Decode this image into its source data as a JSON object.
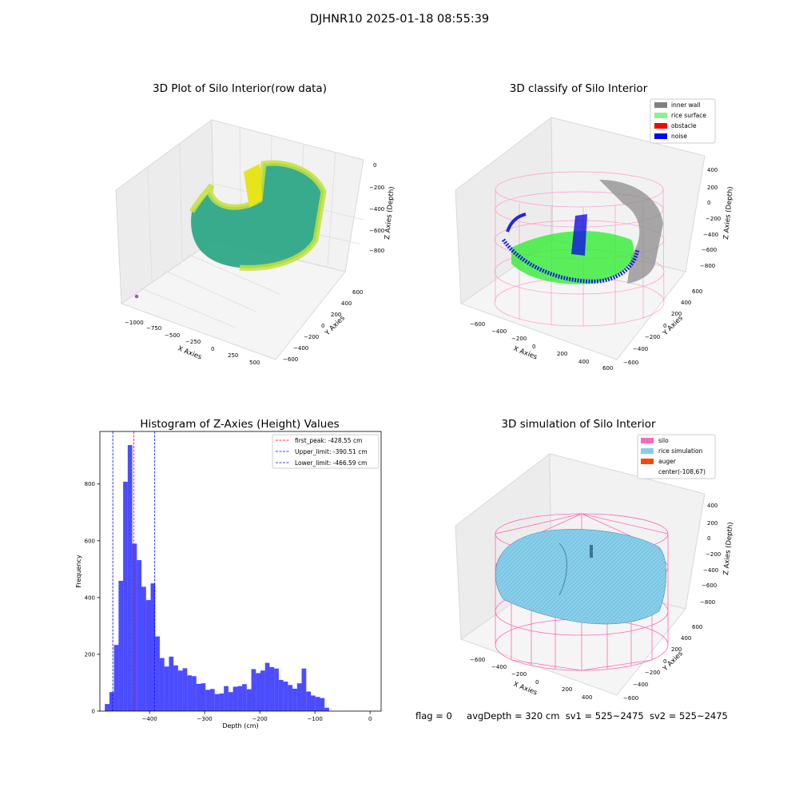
{
  "suptitle": "DJHNR10 2025-01-18 08:55:39",
  "panels": {
    "raw": {
      "title": "3D Plot of Silo Interior(row data)",
      "xlabel": "X Axies",
      "ylabel": "Y Axies",
      "zlabel": "Z Axies (Depth)",
      "xticks": [
        "−1000",
        "−750",
        "−500",
        "−250",
        "0",
        "250",
        "500"
      ],
      "yticks": [
        "600",
        "400",
        "200",
        "0",
        "−200",
        "−400",
        "−600"
      ],
      "zticks": [
        "0",
        "−200",
        "−400",
        "−600",
        "−800"
      ]
    },
    "classify": {
      "title": "3D classify of Silo Interior",
      "xlabel": "X Axies",
      "ylabel": "Y Axies",
      "zlabel": "Z Axies (Depth)",
      "xticks": [
        "−600",
        "−400",
        "−200",
        "0",
        "200",
        "400",
        "600"
      ],
      "yticks": [
        "600",
        "400",
        "200",
        "0",
        "−200",
        "−400",
        "−600"
      ],
      "zticks": [
        "400",
        "200",
        "0",
        "−200",
        "−400",
        "−600",
        "−800"
      ],
      "legend": [
        {
          "label": "inner wall",
          "color": "#808080"
        },
        {
          "label": "rice surface",
          "color": "#90ee90"
        },
        {
          "label": "obstacle",
          "color": "#ff0000"
        },
        {
          "label": "noise",
          "color": "#0000ff"
        }
      ]
    },
    "simulation": {
      "title": "3D simulation of Silo Interior",
      "xlabel": "X Axies",
      "ylabel": "Y Axies",
      "zlabel": "Z Axies (Depth)",
      "xticks": [
        "−600",
        "−400",
        "−200",
        "0",
        "200",
        "400"
      ],
      "yticks": [
        "600",
        "400",
        "200",
        "0",
        "−200",
        "−400",
        "−600"
      ],
      "zticks": [
        "400",
        "200",
        "0",
        "−200",
        "−400",
        "−600",
        "−800"
      ],
      "legend": [
        {
          "label": "silo",
          "color": "#ff69b4"
        },
        {
          "label": "rice simulation",
          "color": "#87ceeb"
        },
        {
          "label": "auger",
          "color": "#ff4500"
        },
        {
          "label": "center(-108,67)",
          "color": ""
        }
      ]
    }
  },
  "footer": {
    "flag": "flag = 0",
    "avg": "avgDepth = 320 cm",
    "sv1": "sv1 = 525~2475",
    "sv2": "sv2 = 525~2475"
  },
  "chart_data": [
    {
      "type": "bar",
      "title": "Histogram of Z-Axies (Height) Values",
      "xlabel": "Depth (cm)",
      "ylabel": "Frequency",
      "xlim": [
        -490,
        20
      ],
      "ylim": [
        0,
        985
      ],
      "xticks": [
        -400,
        -300,
        -200,
        -100,
        0
      ],
      "yticks": [
        0,
        200,
        400,
        600,
        800
      ],
      "bar_color": "#0000ff",
      "bin_width": 8.3,
      "bin_start": -481,
      "values": [
        25,
        67,
        233,
        459,
        808,
        937,
        590,
        532,
        438,
        391,
        450,
        263,
        187,
        157,
        192,
        161,
        143,
        151,
        126,
        123,
        96,
        98,
        75,
        78,
        60,
        62,
        88,
        67,
        86,
        88,
        95,
        77,
        148,
        134,
        143,
        170,
        155,
        150,
        110,
        104,
        92,
        79,
        98,
        150,
        69,
        55,
        50,
        46,
        12
      ],
      "lines": [
        {
          "label": "first_peak: -428.55 cm",
          "x": -428.55,
          "color": "#ff0000"
        },
        {
          "label": "Upper_limit: -390.51 cm",
          "x": -390.51,
          "color": "#0000ff"
        },
        {
          "label": "Lower_limit: -466.59 cm",
          "x": -466.59,
          "color": "#0000ff"
        }
      ]
    }
  ]
}
